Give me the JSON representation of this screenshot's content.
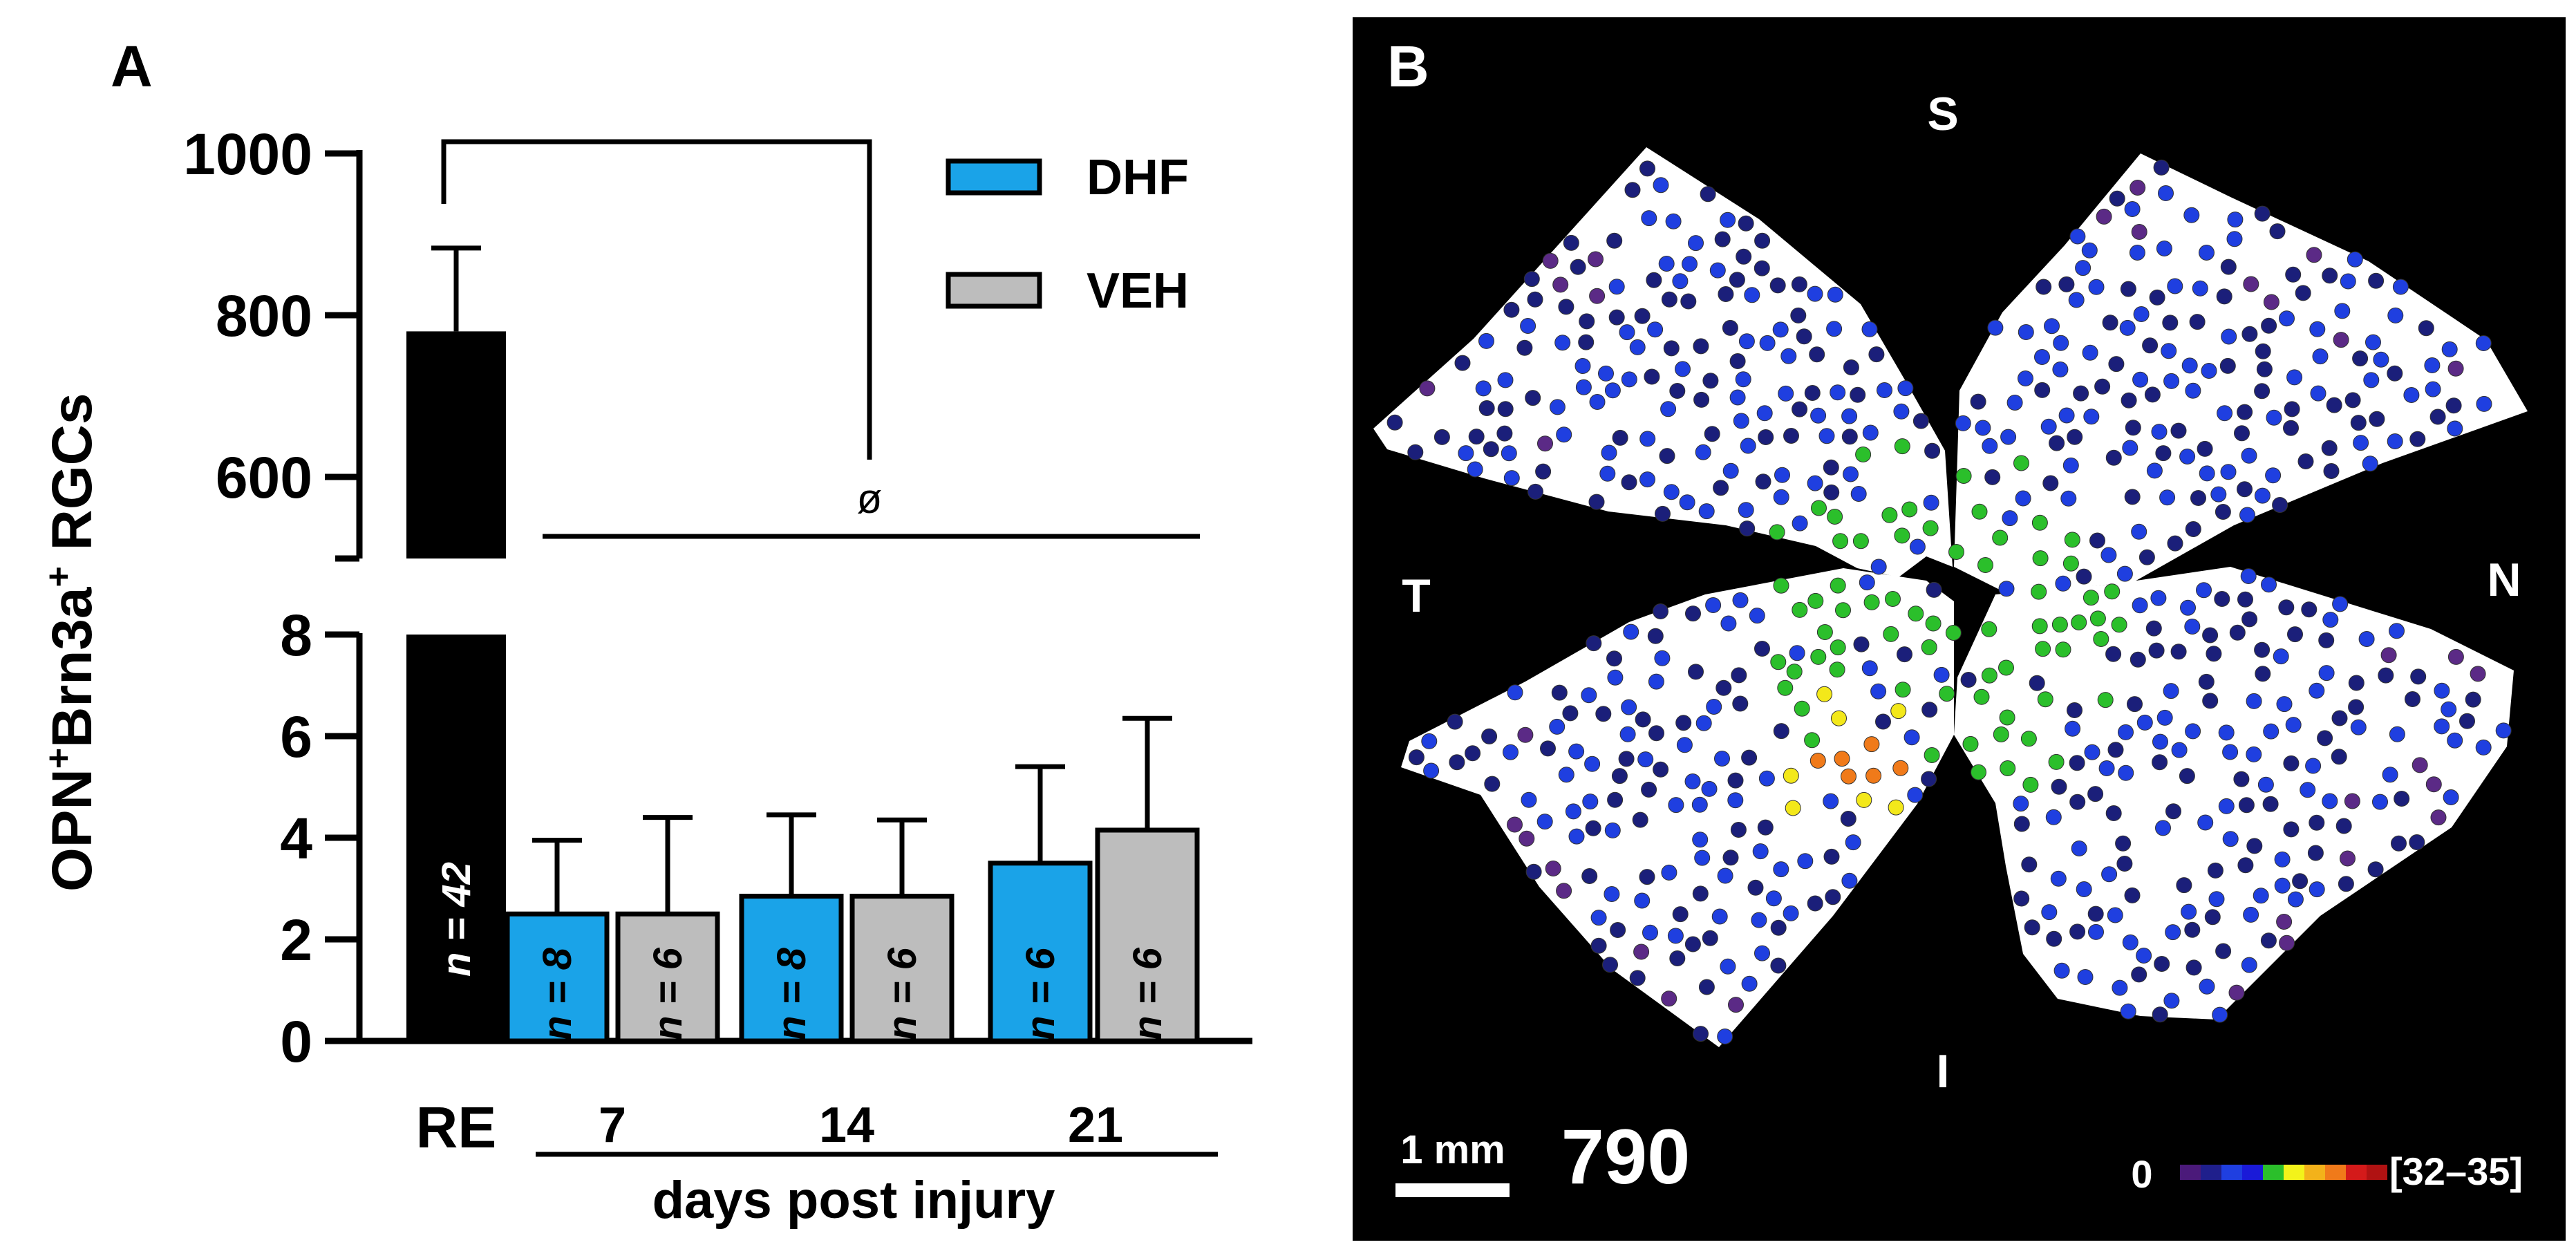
{
  "panel_a": {
    "label": "A",
    "ylabel_parts": {
      "a": "OPN",
      "b": "+",
      "c": "Brn3a",
      "d": "+",
      "e": " RGCs"
    },
    "upper_ticks": [
      "1000",
      "800",
      "600"
    ],
    "lower_ticks": [
      "8",
      "6",
      "4",
      "2",
      "0"
    ],
    "sig_symbol": "ø",
    "xlabel": "days post injury",
    "re_label": "RE",
    "legend": [
      {
        "name": "DHF",
        "color": "#1aa3e8"
      },
      {
        "name": "VEH",
        "color": "#bdbdbd"
      }
    ]
  },
  "chart_data": {
    "type": "bar",
    "ylabel": "OPN+Brn3a+ RGCs",
    "xlabel": "days post injury",
    "broken_axis": {
      "lower_ylim": [
        0,
        8
      ],
      "upper_ylim": [
        500,
        1000
      ]
    },
    "categories": [
      "RE",
      "7",
      "14",
      "21"
    ],
    "series": [
      {
        "name": "RE",
        "color": "#000000",
        "bars": [
          {
            "group": "RE",
            "value": 780,
            "error": 103,
            "n_label": "n = 42"
          }
        ]
      },
      {
        "name": "DHF",
        "color": "#1aa3e8",
        "bars": [
          {
            "group": "7",
            "value": 2.5,
            "error": 1.45,
            "n_label": "n = 8"
          },
          {
            "group": "14",
            "value": 2.85,
            "error": 1.6,
            "n_label": "n = 8"
          },
          {
            "group": "21",
            "value": 3.5,
            "error": 1.9,
            "n_label": "n = 6"
          }
        ]
      },
      {
        "name": "VEH",
        "color": "#bdbdbd",
        "bars": [
          {
            "group": "7",
            "value": 2.5,
            "error": 1.9,
            "n_label": "n = 6"
          },
          {
            "group": "14",
            "value": 2.85,
            "error": 1.5,
            "n_label": "n = 6"
          },
          {
            "group": "21",
            "value": 4.15,
            "error": 2.2,
            "n_label": "n = 6"
          }
        ]
      }
    ],
    "annotation": "ø"
  },
  "panel_b": {
    "label": "B",
    "dir_s": "S",
    "dir_t": "T",
    "dir_n": "N",
    "dir_i": "I",
    "scale_label": "1 mm",
    "count": "790",
    "cbar_min": "0",
    "cbar_max": "[32–35]",
    "colormap": [
      "#4b1a7a",
      "#1f1f8c",
      "#1f3fe0",
      "#1a1ad8",
      "#2bbf2b",
      "#f3f31a",
      "#f3b21a",
      "#f07a1a",
      "#d41a1a",
      "#b01212"
    ],
    "dot_colors": {
      "purple": "#5b2a86",
      "navy": "#1b1f7a",
      "blue": "#1f3fe0",
      "green": "#2bbf2b",
      "yellow": "#f3e81a",
      "orange": "#f07a1a"
    }
  }
}
